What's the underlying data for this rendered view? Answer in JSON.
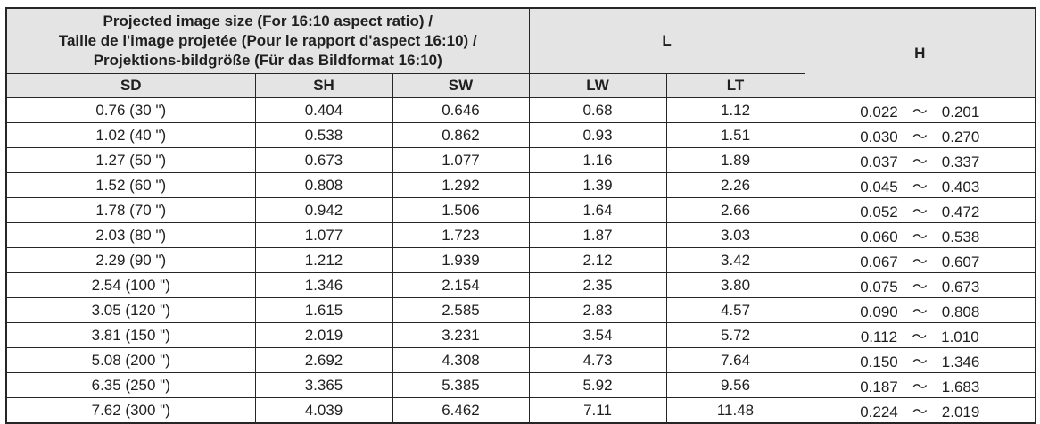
{
  "table": {
    "header": {
      "projected_title_lines": [
        "Projected image size (For 16:10 aspect ratio) /",
        "Taille de l'image projetée (Pour le rapport d'aspect 16:10) /",
        "Projektions-bildgröße (Für das Bildformat 16:10)"
      ],
      "l_label": "L",
      "h_label": "H",
      "sub_columns": {
        "sd": "SD",
        "sh": "SH",
        "sw": "SW",
        "lw": "LW",
        "lt": "LT"
      }
    },
    "tilde": "～",
    "rows": [
      {
        "sd": "0.76 (30 \")",
        "sh": "0.404",
        "sw": "0.646",
        "lw": "0.68",
        "lt": "1.12",
        "h_min": "0.022",
        "h_max": "0.201"
      },
      {
        "sd": "1.02 (40 \")",
        "sh": "0.538",
        "sw": "0.862",
        "lw": "0.93",
        "lt": "1.51",
        "h_min": "0.030",
        "h_max": "0.270"
      },
      {
        "sd": "1.27 (50 \")",
        "sh": "0.673",
        "sw": "1.077",
        "lw": "1.16",
        "lt": "1.89",
        "h_min": "0.037",
        "h_max": "0.337"
      },
      {
        "sd": "1.52 (60 \")",
        "sh": "0.808",
        "sw": "1.292",
        "lw": "1.39",
        "lt": "2.26",
        "h_min": "0.045",
        "h_max": "0.403"
      },
      {
        "sd": "1.78 (70 \")",
        "sh": "0.942",
        "sw": "1.506",
        "lw": "1.64",
        "lt": "2.66",
        "h_min": "0.052",
        "h_max": "0.472"
      },
      {
        "sd": "2.03 (80 \")",
        "sh": "1.077",
        "sw": "1.723",
        "lw": "1.87",
        "lt": "3.03",
        "h_min": "0.060",
        "h_max": "0.538"
      },
      {
        "sd": "2.29 (90 \")",
        "sh": "1.212",
        "sw": "1.939",
        "lw": "2.12",
        "lt": "3.42",
        "h_min": "0.067",
        "h_max": "0.607"
      },
      {
        "sd": "2.54 (100 \")",
        "sh": "1.346",
        "sw": "2.154",
        "lw": "2.35",
        "lt": "3.80",
        "h_min": "0.075",
        "h_max": "0.673"
      },
      {
        "sd": "3.05 (120 \")",
        "sh": "1.615",
        "sw": "2.585",
        "lw": "2.83",
        "lt": "4.57",
        "h_min": "0.090",
        "h_max": "0.808"
      },
      {
        "sd": "3.81 (150 \")",
        "sh": "2.019",
        "sw": "3.231",
        "lw": "3.54",
        "lt": "5.72",
        "h_min": "0.112",
        "h_max": "1.010"
      },
      {
        "sd": "5.08 (200 \")",
        "sh": "2.692",
        "sw": "4.308",
        "lw": "4.73",
        "lt": "7.64",
        "h_min": "0.150",
        "h_max": "1.346"
      },
      {
        "sd": "6.35 (250 \")",
        "sh": "3.365",
        "sw": "5.385",
        "lw": "5.92",
        "lt": "9.56",
        "h_min": "0.187",
        "h_max": "1.683"
      },
      {
        "sd": "7.62 (300 \")",
        "sh": "4.039",
        "sw": "6.462",
        "lw": "7.11",
        "lt": "11.48",
        "h_min": "0.224",
        "h_max": "2.019"
      }
    ]
  },
  "colors": {
    "header_bg": "#e4e4e4",
    "border": "#262626",
    "text": "#1f1f1f",
    "row_bg": "#ffffff"
  }
}
